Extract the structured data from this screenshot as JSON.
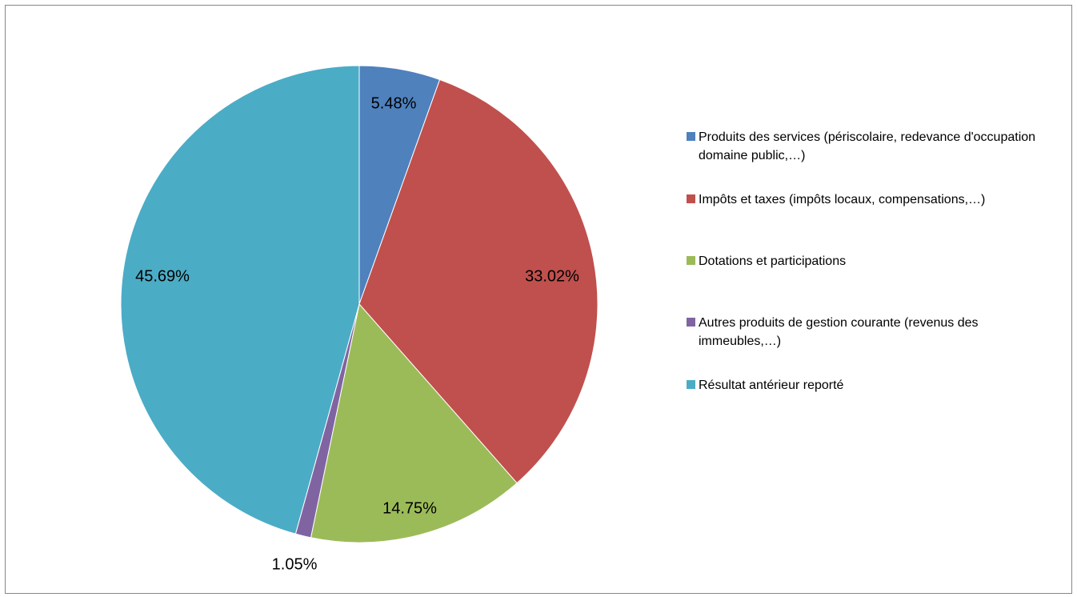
{
  "chart_data": {
    "type": "pie",
    "title": "",
    "slices": [
      {
        "label": "Produits des services (périscolaire, redevance d'occupation domaine public,…)",
        "value": 5.48,
        "display": "5.48%",
        "color": "#4F81BD"
      },
      {
        "label": "Impôts et taxes (impôts locaux, compensations,…)",
        "value": 33.02,
        "display": "33.02%",
        "color": "#C0504D"
      },
      {
        "label": "Dotations et participations",
        "value": 14.75,
        "display": "14.75%",
        "color": "#9BBB59"
      },
      {
        "label": "Autres produits de gestion courante (revenus des immeubles,…)",
        "value": 1.05,
        "display": "1.05%",
        "color": "#8064A2"
      },
      {
        "label": "Résultat antérieur reporté",
        "value": 45.69,
        "display": "45.69%",
        "color": "#4BACC6"
      }
    ],
    "legend_position": "right"
  },
  "legend": {
    "items": [
      {
        "label": "Produits des services (périscolaire, redevance d'occupation domaine public,…)"
      },
      {
        "label": "Impôts et taxes (impôts locaux, compensations,…)"
      },
      {
        "label": "Dotations et participations"
      },
      {
        "label": "Autres produits de gestion courante (revenus des immeubles,…)"
      },
      {
        "label": "Résultat antérieur reporté"
      }
    ]
  }
}
